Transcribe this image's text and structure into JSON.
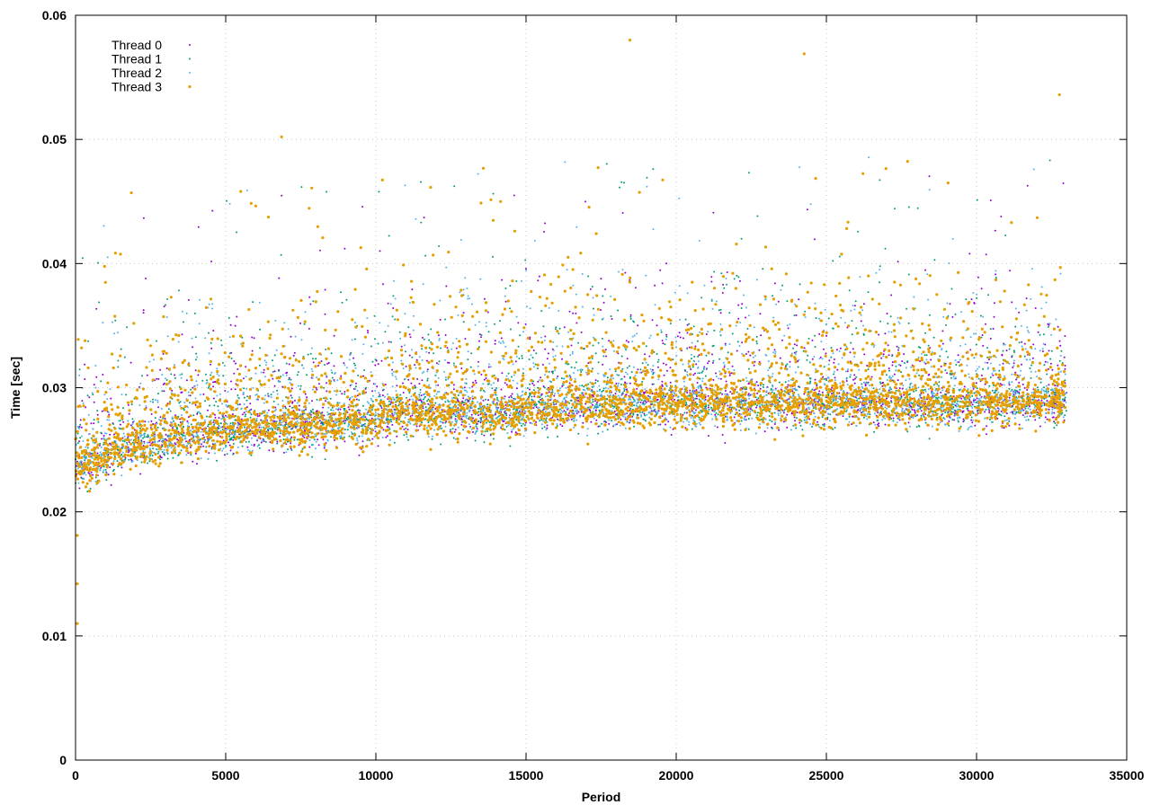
{
  "chart_data": {
    "type": "scatter",
    "title": "",
    "xlabel": "Period",
    "ylabel": "Time [sec]",
    "xlim": [
      0,
      35000
    ],
    "ylim": [
      0,
      0.06
    ],
    "x_ticks": [
      0,
      5000,
      10000,
      15000,
      20000,
      25000,
      30000,
      35000
    ],
    "y_ticks": [
      0,
      0.01,
      0.02,
      0.03,
      0.04,
      0.05,
      0.06
    ],
    "grid": true,
    "legend_position": "top-left",
    "series": [
      {
        "name": "Thread 0",
        "color": "#9400d3",
        "marker": "dot",
        "trend": {
          "x": [
            0,
            500,
            1500,
            3000,
            5000,
            7000,
            10000,
            11000,
            14000,
            16000,
            20000,
            25000,
            30000,
            33000
          ],
          "y": [
            0.0235,
            0.0238,
            0.025,
            0.0258,
            0.0265,
            0.0268,
            0.0272,
            0.028,
            0.0278,
            0.0285,
            0.0286,
            0.0287,
            0.0286,
            0.0288
          ]
        },
        "spread_below": 0.0015,
        "spread_above": 0.02,
        "x_max": 33000
      },
      {
        "name": "Thread 1",
        "color": "#009e73",
        "marker": "dot",
        "trend": {
          "x": [
            0,
            500,
            1500,
            3000,
            5000,
            7000,
            10000,
            11000,
            14000,
            16000,
            20000,
            25000,
            30000,
            33000
          ],
          "y": [
            0.0235,
            0.0238,
            0.025,
            0.0258,
            0.0265,
            0.0268,
            0.0272,
            0.028,
            0.0278,
            0.0285,
            0.0286,
            0.0287,
            0.0286,
            0.0288
          ]
        },
        "spread_below": 0.0015,
        "spread_above": 0.02,
        "x_max": 33000
      },
      {
        "name": "Thread 2",
        "color": "#56b4e9",
        "marker": "dot",
        "trend": {
          "x": [
            0,
            500,
            1500,
            3000,
            5000,
            7000,
            10000,
            11000,
            14000,
            16000,
            20000,
            25000,
            30000,
            33000
          ],
          "y": [
            0.0235,
            0.0238,
            0.025,
            0.0258,
            0.0265,
            0.0268,
            0.0272,
            0.028,
            0.0278,
            0.0285,
            0.0286,
            0.0287,
            0.0286,
            0.0288
          ]
        },
        "spread_below": 0.0015,
        "spread_above": 0.02,
        "x_max": 33000
      },
      {
        "name": "Thread 3",
        "color": "#e69f00",
        "marker": "dot",
        "trend": {
          "x": [
            0,
            500,
            1500,
            3000,
            5000,
            7000,
            10000,
            11000,
            14000,
            16000,
            20000,
            25000,
            30000,
            33000
          ],
          "y": [
            0.0235,
            0.0238,
            0.025,
            0.0258,
            0.0265,
            0.0268,
            0.0272,
            0.028,
            0.0278,
            0.0285,
            0.0286,
            0.0287,
            0.0286,
            0.0288
          ]
        },
        "spread_below": 0.0015,
        "spread_above": 0.02,
        "x_max": 33000
      }
    ],
    "annotations": [
      {
        "x": 0,
        "y": 0.011
      },
      {
        "x": 0,
        "y": 0.0142
      },
      {
        "x": 0,
        "y": 0.0181
      },
      {
        "x": 1800,
        "y": 0.0457
      },
      {
        "x": 6800,
        "y": 0.0502
      },
      {
        "x": 18400,
        "y": 0.058
      },
      {
        "x": 24200,
        "y": 0.0569
      },
      {
        "x": 32700,
        "y": 0.0536
      }
    ]
  }
}
